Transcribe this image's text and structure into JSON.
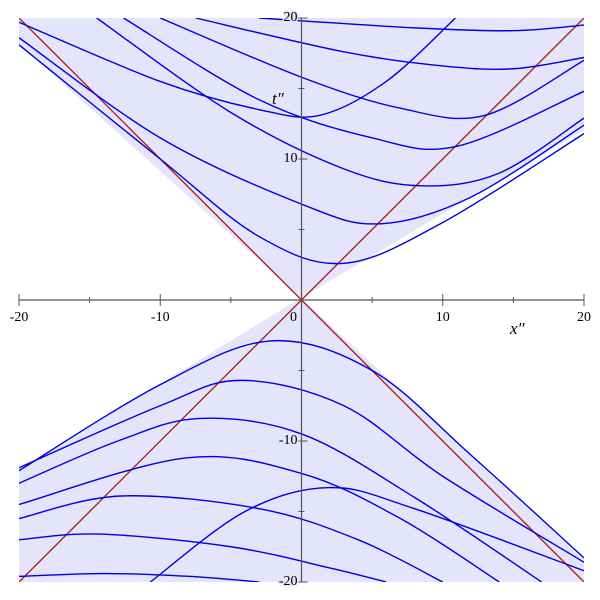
{
  "chart_data": {
    "type": "line",
    "x_label": "x″",
    "y_label": "t″",
    "xlim": [
      -20,
      20
    ],
    "ylim": [
      -20,
      20
    ],
    "xticks": [
      -20,
      -10,
      0,
      10,
      20
    ],
    "yticks": [
      -20,
      -10,
      10,
      20
    ],
    "xminorticks": [
      -15,
      -5,
      5,
      15
    ],
    "yminorticks": [
      -15,
      -5,
      5,
      15
    ],
    "shade_color": "#e4e4fb",
    "series": [
      {
        "color": "#b22222",
        "x": [
          -20,
          20
        ],
        "values": [
          -20,
          20
        ]
      },
      {
        "color": "#b22222",
        "x": [
          -20,
          20
        ],
        "values": [
          20,
          -20
        ]
      },
      {
        "color": "#0000e0",
        "x": [
          -20,
          -10,
          -3,
          3,
          10,
          20
        ],
        "values": [
          18.1,
          10,
          4.5,
          2.6,
          5.5,
          11.8
        ]
      },
      {
        "color": "#0000e0",
        "x": [
          -20,
          -10,
          0,
          5.5,
          12,
          20
        ],
        "values": [
          18.6,
          11.5,
          6.8,
          5.4,
          7.3,
          12.4
        ]
      },
      {
        "color": "#0000e0",
        "x": [
          -14.5,
          -5,
          3,
          8.5,
          14,
          20
        ],
        "values": [
          20,
          13.3,
          9.3,
          8.1,
          9,
          12.9
        ]
      },
      {
        "color": "#0000e0",
        "x": [
          -12.6,
          -3,
          5,
          11,
          20
        ],
        "values": [
          20,
          14.2,
          11.5,
          10.9,
          14.8
        ]
      },
      {
        "color": "#0000e0",
        "x": [
          -10,
          0,
          7,
          13,
          20
        ],
        "values": [
          20,
          15.8,
          13.6,
          13.1,
          17
        ]
      },
      {
        "color": "#0000e0",
        "x": [
          -7.5,
          3,
          10,
          15,
          20
        ],
        "values": [
          20,
          17.6,
          16.6,
          16.4,
          17.2
        ]
      },
      {
        "color": "#0000e0",
        "x": [
          -3,
          8,
          15,
          20
        ],
        "values": [
          20,
          19.3,
          19.1,
          19.5
        ]
      },
      {
        "color": "#0000e0",
        "x": [
          -20,
          -10,
          -3,
          1.3,
          6,
          10.9
        ],
        "values": [
          19.7,
          15.5,
          13.5,
          13.1,
          15.5,
          20
        ]
      },
      {
        "color": "#0000e0",
        "x": [
          -20,
          -10,
          -2.2,
          5,
          12,
          20
        ],
        "values": [
          -12.1,
          -6,
          -2.9,
          -5,
          -11,
          -18.3
        ]
      },
      {
        "color": "#0000e0",
        "x": [
          -20,
          -10,
          -4.3,
          3,
          10,
          20
        ],
        "values": [
          -11.9,
          -7.5,
          -5.7,
          -7.5,
          -12.5,
          -18.6
        ]
      },
      {
        "color": "#0000e0",
        "x": [
          -20,
          -13,
          -7.2,
          0,
          8,
          17
        ],
        "values": [
          -13,
          -10,
          -8.4,
          -9.5,
          -14,
          -20
        ]
      },
      {
        "color": "#0000e0",
        "x": [
          -20,
          -8.2,
          0,
          7,
          14
        ],
        "values": [
          -14.5,
          -11.2,
          -12.3,
          -15.5,
          -20
        ]
      },
      {
        "color": "#0000e0",
        "x": [
          -20,
          -12.8,
          -3,
          4,
          10
        ],
        "values": [
          -15.5,
          -13.9,
          -14.8,
          -17,
          -20
        ]
      },
      {
        "color": "#0000e0",
        "x": [
          -20,
          -14.3,
          -5,
          2,
          6
        ],
        "values": [
          -17,
          -16.6,
          -17.5,
          -19,
          -20
        ]
      },
      {
        "color": "#0000e0",
        "x": [
          -20,
          -14,
          -8,
          -3
        ],
        "values": [
          -19.6,
          -19.4,
          -19.6,
          -20
        ]
      },
      {
        "color": "#0000e0",
        "x": [
          -10.7,
          -4,
          2,
          8,
          20
        ],
        "values": [
          -20,
          -15,
          -13.3,
          -14.8,
          -19.2
        ]
      }
    ]
  }
}
